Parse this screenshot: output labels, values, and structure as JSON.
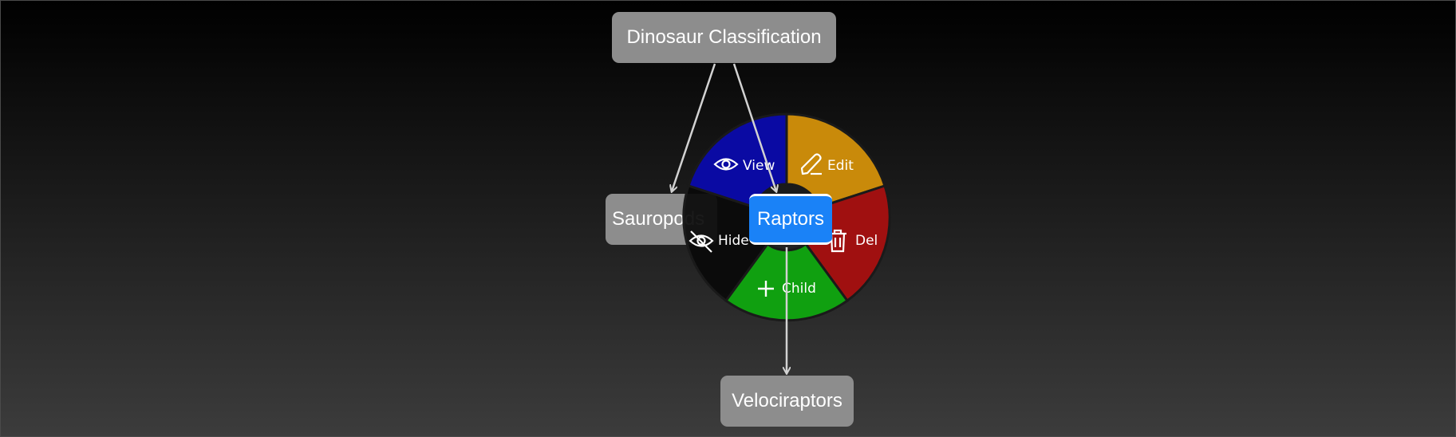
{
  "diagram": {
    "nodes": {
      "root": "Dinosaur Classification",
      "sauropods": "Sauropods",
      "raptors": "Raptors",
      "velociraptors": "Velociraptors"
    },
    "edges": [
      {
        "from": "root",
        "to": "sauropods"
      },
      {
        "from": "root",
        "to": "raptors"
      },
      {
        "from": "raptors",
        "to": "velociraptors"
      }
    ],
    "selected_node": "raptors"
  },
  "radial_menu": {
    "items": [
      {
        "id": "view",
        "label": "View",
        "icon": "eye-icon",
        "color": "#0a0aa8"
      },
      {
        "id": "edit",
        "label": "Edit",
        "icon": "pencil-icon",
        "color": "#c98a0a"
      },
      {
        "id": "del",
        "label": "Del",
        "icon": "trash-icon",
        "color": "#a01010"
      },
      {
        "id": "child",
        "label": "Child",
        "icon": "plus-icon",
        "color": "#10a010"
      },
      {
        "id": "hide",
        "label": "Hide",
        "icon": "eye-off-icon",
        "color": "#0a0a0a"
      }
    ]
  },
  "colors": {
    "node_fill": "#8d8d8d",
    "selected_fill": "#1a82f7",
    "edge": "#d2d2d2"
  }
}
